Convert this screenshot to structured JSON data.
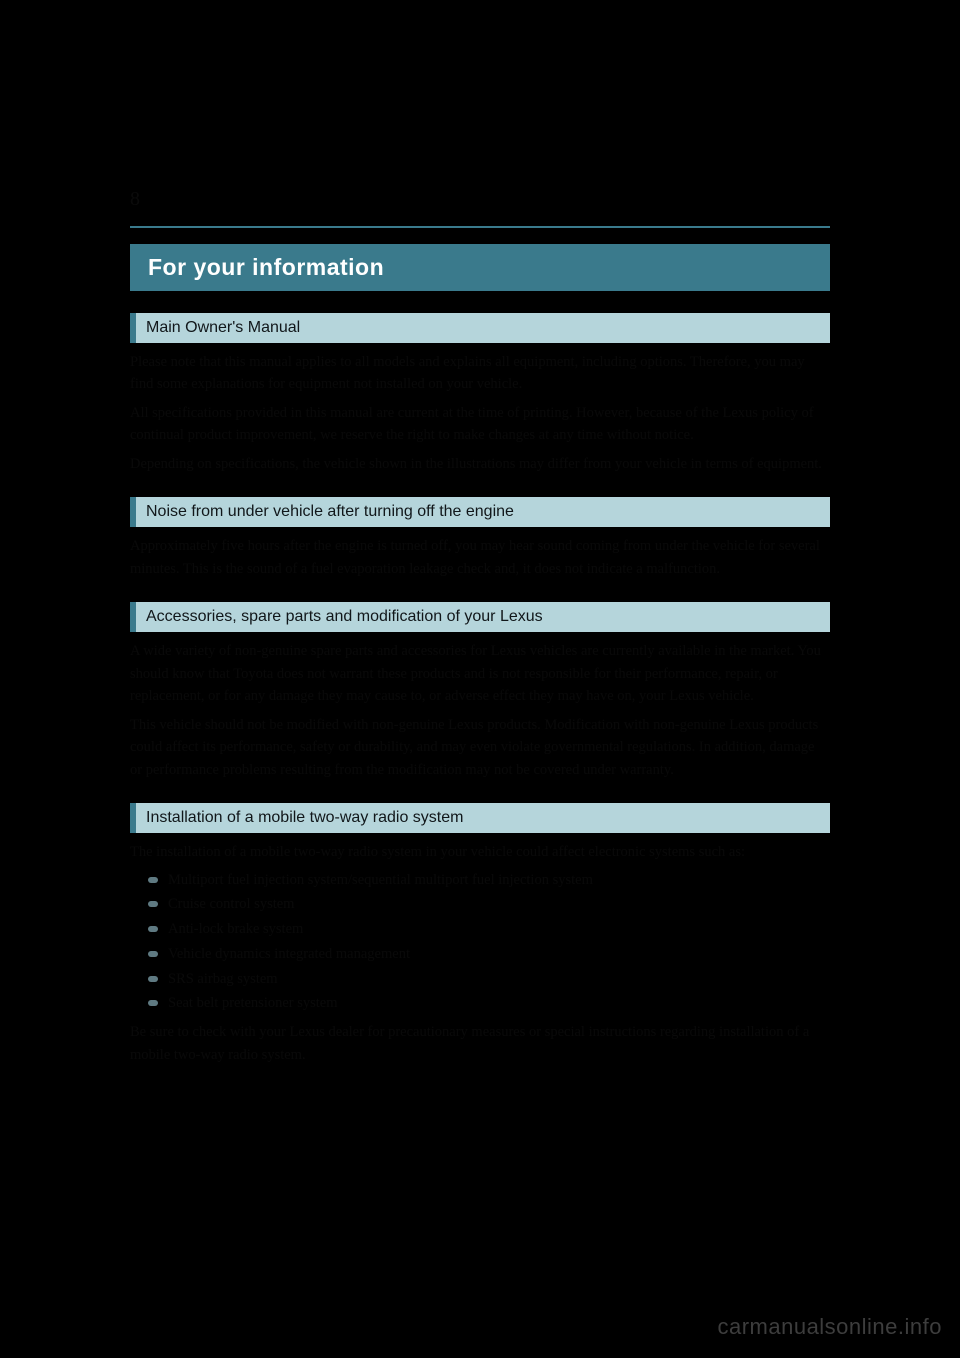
{
  "page_number": "8",
  "title": "For your information",
  "sections": [
    {
      "heading": "Main Owner's Manual",
      "paragraphs": [
        "Please note that this manual applies to all models and explains all equipment, including options. Therefore, you may find some explanations for equipment not installed on your vehicle.",
        "All specifications provided in this manual are current at the time of printing. However, because of the Lexus policy of continual product improvement, we reserve the right to make changes at any time without notice.",
        "Depending on specifications, the vehicle shown in the illustrations may differ from your vehicle in terms of equipment."
      ],
      "bullets": []
    },
    {
      "heading": "Noise from under vehicle after turning off the engine",
      "paragraphs": [
        "Approximately five hours after the engine is turned off, you may hear sound coming from under the vehicle for several minutes. This is the sound of a fuel evaporation leakage check and, it does not indicate a malfunction."
      ],
      "bullets": []
    },
    {
      "heading": "Accessories, spare parts and modification of your Lexus",
      "paragraphs": [
        "A wide variety of non-genuine spare parts and accessories for Lexus vehicles are currently available in the market. You should know that Toyota does not warrant these products and is not responsible for their performance, repair, or replacement, or for any damage they may cause to, or adverse effect they may have on, your Lexus vehicle.",
        "This vehicle should not be modified with non-genuine Lexus products. Modification with non-genuine Lexus products could affect its performance, safety or durability, and may even violate governmental regulations. In addition, damage or performance problems resulting from the modification may not be covered under warranty."
      ],
      "bullets": []
    },
    {
      "heading": "Installation of a mobile two-way radio system",
      "paragraphs": [
        "The installation of a mobile two-way radio system in your vehicle could affect electronic systems such as:"
      ],
      "bullets": [
        "Multiport fuel injection system/sequential multiport fuel injection system",
        "Cruise control system",
        "Anti-lock brake system",
        "Vehicle dynamics integrated management",
        "SRS airbag system",
        "Seat belt pretensioner system"
      ],
      "trailing": "Be sure to check with your Lexus dealer for precautionary measures or special instructions regarding installation of a mobile two-way radio system."
    }
  ],
  "watermark": "carmanualsonline.info",
  "colors": {
    "background": "#000000",
    "title_bar": "#3a7a8c",
    "section_bg": "#b5d5db",
    "section_border": "#3a7a8c",
    "section_text": "#11171a",
    "bullet": "#5f7a82",
    "watermark": "#3d3d3d"
  }
}
